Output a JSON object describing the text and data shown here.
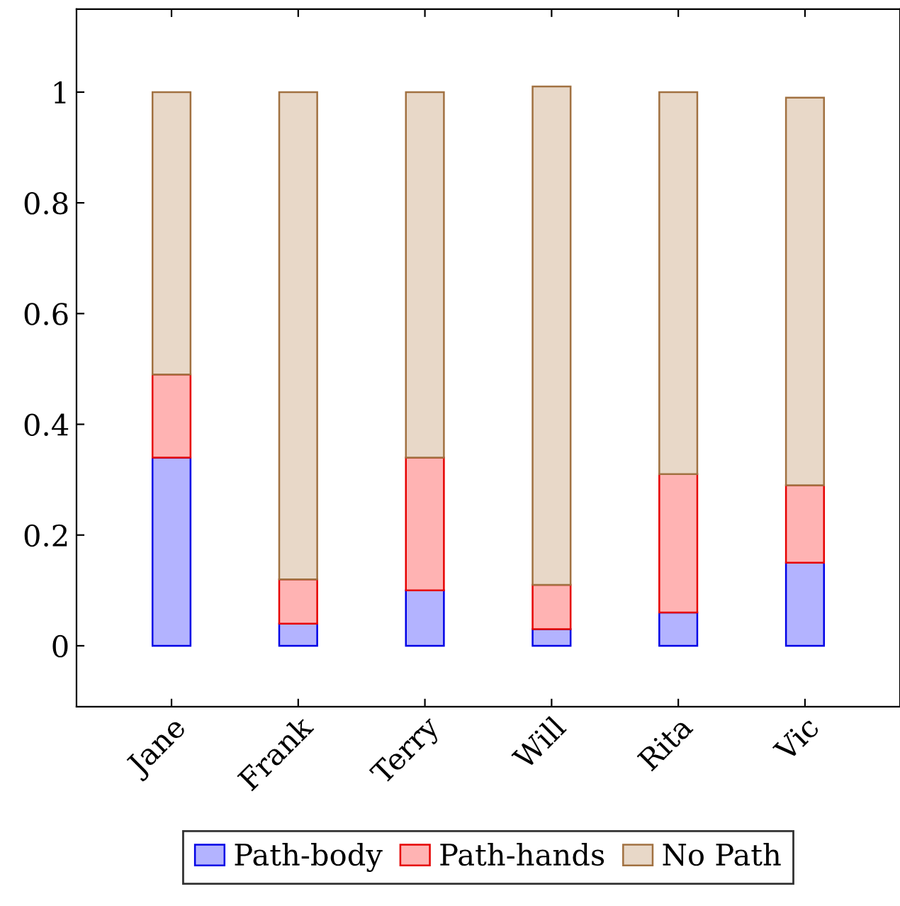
{
  "chart_data": {
    "type": "bar",
    "stacked": true,
    "categories": [
      "Jane",
      "Frank",
      "Terry",
      "Will",
      "Rita",
      "Vic"
    ],
    "series": [
      {
        "name": "Path-body",
        "color": "#b3b3ff",
        "values": [
          0.34,
          0.04,
          0.1,
          0.03,
          0.06,
          0.15
        ]
      },
      {
        "name": "Path-hands",
        "color": "#ffb3b3",
        "values": [
          0.15,
          0.08,
          0.24,
          0.08,
          0.25,
          0.14
        ]
      },
      {
        "name": "No Path",
        "color": "#e8d8c8",
        "values": [
          0.51,
          0.88,
          0.66,
          0.9,
          0.69,
          0.7
        ]
      }
    ],
    "ylim": [
      -0.11,
      1.15
    ],
    "yticks": [
      0,
      0.2,
      0.4,
      0.6,
      0.8,
      1
    ],
    "grid": false,
    "legend": "bottom"
  }
}
